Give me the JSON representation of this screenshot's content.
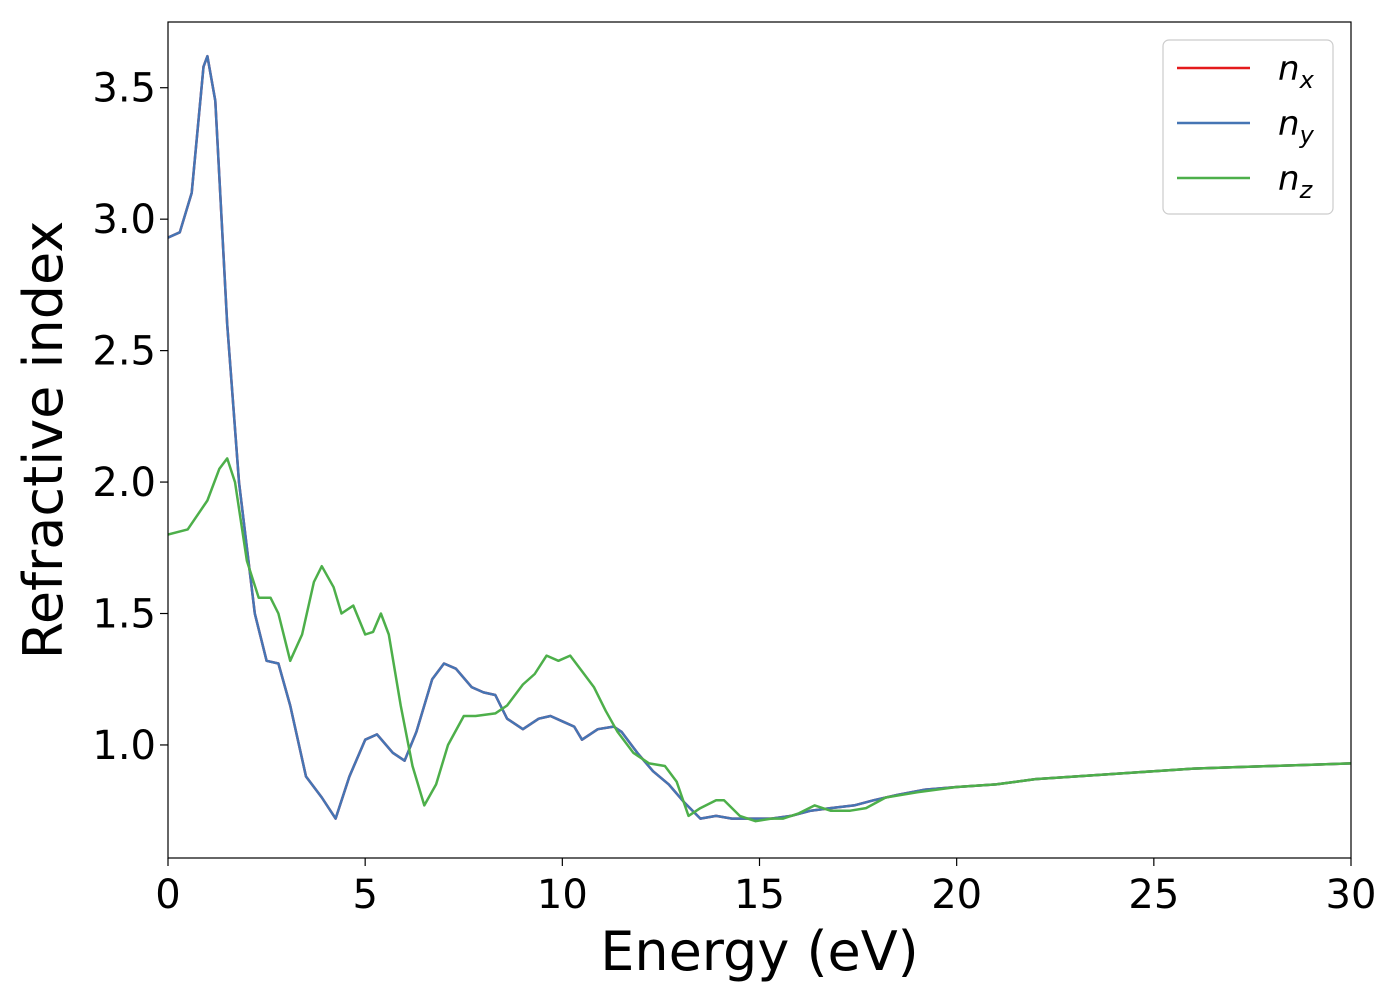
{
  "chart_data": {
    "type": "line",
    "title": "",
    "xlabel": "Energy (eV)",
    "ylabel": "Refractive index",
    "xlim": [
      0,
      30
    ],
    "ylim": [
      0.57,
      3.75
    ],
    "grid": false,
    "legend_position": "top-right",
    "x_ticks": [
      0,
      5,
      10,
      15,
      20,
      25,
      30
    ],
    "y_ticks": [
      1.0,
      1.5,
      2.0,
      2.5,
      3.0,
      3.5
    ],
    "x_tick_labels": [
      "0",
      "5",
      "10",
      "15",
      "20",
      "25",
      "30"
    ],
    "y_tick_labels": [
      "1.0",
      "1.5",
      "2.0",
      "2.5",
      "3.0",
      "3.5"
    ],
    "series": [
      {
        "name": "n",
        "subscript": "x",
        "color": "#e41a1c",
        "points": [
          [
            0,
            2.93
          ],
          [
            0.3,
            2.95
          ],
          [
            0.6,
            3.1
          ],
          [
            0.9,
            3.58
          ],
          [
            1.0,
            3.62
          ],
          [
            1.2,
            3.45
          ],
          [
            1.5,
            2.6
          ],
          [
            1.8,
            2.0
          ],
          [
            2.2,
            1.5
          ],
          [
            2.5,
            1.32
          ],
          [
            2.8,
            1.31
          ],
          [
            3.1,
            1.15
          ],
          [
            3.5,
            0.88
          ],
          [
            3.9,
            0.8
          ],
          [
            4.25,
            0.72
          ],
          [
            4.6,
            0.88
          ],
          [
            5.0,
            1.02
          ],
          [
            5.3,
            1.04
          ],
          [
            5.7,
            0.97
          ],
          [
            6.0,
            0.94
          ],
          [
            6.3,
            1.05
          ],
          [
            6.7,
            1.25
          ],
          [
            7.0,
            1.31
          ],
          [
            7.3,
            1.29
          ],
          [
            7.7,
            1.22
          ],
          [
            8.0,
            1.2
          ],
          [
            8.3,
            1.19
          ],
          [
            8.6,
            1.1
          ],
          [
            9.0,
            1.06
          ],
          [
            9.4,
            1.1
          ],
          [
            9.7,
            1.11
          ],
          [
            10.0,
            1.09
          ],
          [
            10.3,
            1.07
          ],
          [
            10.5,
            1.02
          ],
          [
            10.9,
            1.06
          ],
          [
            11.3,
            1.07
          ],
          [
            11.5,
            1.05
          ],
          [
            11.9,
            0.97
          ],
          [
            12.3,
            0.9
          ],
          [
            12.7,
            0.85
          ],
          [
            13.1,
            0.78
          ],
          [
            13.5,
            0.72
          ],
          [
            13.9,
            0.73
          ],
          [
            14.3,
            0.72
          ],
          [
            14.8,
            0.72
          ],
          [
            15.3,
            0.72
          ],
          [
            15.8,
            0.73
          ],
          [
            16.3,
            0.75
          ],
          [
            16.8,
            0.76
          ],
          [
            17.4,
            0.77
          ],
          [
            17.9,
            0.79
          ],
          [
            18.5,
            0.81
          ],
          [
            19.2,
            0.83
          ],
          [
            20.0,
            0.84
          ],
          [
            21.0,
            0.85
          ],
          [
            22.0,
            0.87
          ],
          [
            23.0,
            0.88
          ],
          [
            24.0,
            0.89
          ],
          [
            25.0,
            0.9
          ],
          [
            26.0,
            0.91
          ],
          [
            27.0,
            0.915
          ],
          [
            28.0,
            0.92
          ],
          [
            29.0,
            0.925
          ],
          [
            30.0,
            0.93
          ]
        ]
      },
      {
        "name": "n",
        "subscript": "y",
        "color": "#4575b4",
        "points": [
          [
            0,
            2.93
          ],
          [
            0.3,
            2.95
          ],
          [
            0.6,
            3.1
          ],
          [
            0.9,
            3.58
          ],
          [
            1.0,
            3.62
          ],
          [
            1.2,
            3.45
          ],
          [
            1.5,
            2.6
          ],
          [
            1.8,
            2.0
          ],
          [
            2.2,
            1.5
          ],
          [
            2.5,
            1.32
          ],
          [
            2.8,
            1.31
          ],
          [
            3.1,
            1.15
          ],
          [
            3.5,
            0.88
          ],
          [
            3.9,
            0.8
          ],
          [
            4.25,
            0.72
          ],
          [
            4.6,
            0.88
          ],
          [
            5.0,
            1.02
          ],
          [
            5.3,
            1.04
          ],
          [
            5.7,
            0.97
          ],
          [
            6.0,
            0.94
          ],
          [
            6.3,
            1.05
          ],
          [
            6.7,
            1.25
          ],
          [
            7.0,
            1.31
          ],
          [
            7.3,
            1.29
          ],
          [
            7.7,
            1.22
          ],
          [
            8.0,
            1.2
          ],
          [
            8.3,
            1.19
          ],
          [
            8.6,
            1.1
          ],
          [
            9.0,
            1.06
          ],
          [
            9.4,
            1.1
          ],
          [
            9.7,
            1.11
          ],
          [
            10.0,
            1.09
          ],
          [
            10.3,
            1.07
          ],
          [
            10.5,
            1.02
          ],
          [
            10.9,
            1.06
          ],
          [
            11.3,
            1.07
          ],
          [
            11.5,
            1.05
          ],
          [
            11.9,
            0.97
          ],
          [
            12.3,
            0.9
          ],
          [
            12.7,
            0.85
          ],
          [
            13.1,
            0.78
          ],
          [
            13.5,
            0.72
          ],
          [
            13.9,
            0.73
          ],
          [
            14.3,
            0.72
          ],
          [
            14.8,
            0.72
          ],
          [
            15.3,
            0.72
          ],
          [
            15.8,
            0.73
          ],
          [
            16.3,
            0.75
          ],
          [
            16.8,
            0.76
          ],
          [
            17.4,
            0.77
          ],
          [
            17.9,
            0.79
          ],
          [
            18.5,
            0.81
          ],
          [
            19.2,
            0.83
          ],
          [
            20.0,
            0.84
          ],
          [
            21.0,
            0.85
          ],
          [
            22.0,
            0.87
          ],
          [
            23.0,
            0.88
          ],
          [
            24.0,
            0.89
          ],
          [
            25.0,
            0.9
          ],
          [
            26.0,
            0.91
          ],
          [
            27.0,
            0.915
          ],
          [
            28.0,
            0.92
          ],
          [
            29.0,
            0.925
          ],
          [
            30.0,
            0.93
          ]
        ]
      },
      {
        "name": "n",
        "subscript": "z",
        "color": "#4daf4a",
        "points": [
          [
            0,
            1.8
          ],
          [
            0.5,
            1.82
          ],
          [
            1.0,
            1.93
          ],
          [
            1.3,
            2.05
          ],
          [
            1.5,
            2.09
          ],
          [
            1.7,
            2.0
          ],
          [
            2.0,
            1.7
          ],
          [
            2.3,
            1.56
          ],
          [
            2.6,
            1.56
          ],
          [
            2.8,
            1.5
          ],
          [
            3.1,
            1.32
          ],
          [
            3.4,
            1.42
          ],
          [
            3.7,
            1.62
          ],
          [
            3.9,
            1.68
          ],
          [
            4.2,
            1.6
          ],
          [
            4.4,
            1.5
          ],
          [
            4.7,
            1.53
          ],
          [
            5.0,
            1.42
          ],
          [
            5.2,
            1.43
          ],
          [
            5.4,
            1.5
          ],
          [
            5.6,
            1.42
          ],
          [
            5.9,
            1.15
          ],
          [
            6.2,
            0.92
          ],
          [
            6.5,
            0.77
          ],
          [
            6.8,
            0.85
          ],
          [
            7.1,
            1.0
          ],
          [
            7.5,
            1.11
          ],
          [
            7.8,
            1.11
          ],
          [
            8.3,
            1.12
          ],
          [
            8.6,
            1.15
          ],
          [
            9.0,
            1.23
          ],
          [
            9.3,
            1.27
          ],
          [
            9.6,
            1.34
          ],
          [
            9.9,
            1.32
          ],
          [
            10.2,
            1.34
          ],
          [
            10.5,
            1.28
          ],
          [
            10.8,
            1.22
          ],
          [
            11.1,
            1.13
          ],
          [
            11.4,
            1.05
          ],
          [
            11.8,
            0.97
          ],
          [
            12.2,
            0.93
          ],
          [
            12.6,
            0.92
          ],
          [
            12.9,
            0.86
          ],
          [
            13.2,
            0.73
          ],
          [
            13.5,
            0.76
          ],
          [
            13.9,
            0.79
          ],
          [
            14.1,
            0.79
          ],
          [
            14.5,
            0.73
          ],
          [
            14.9,
            0.71
          ],
          [
            15.3,
            0.72
          ],
          [
            15.6,
            0.72
          ],
          [
            16.0,
            0.74
          ],
          [
            16.4,
            0.77
          ],
          [
            16.8,
            0.75
          ],
          [
            17.3,
            0.75
          ],
          [
            17.7,
            0.76
          ],
          [
            18.2,
            0.8
          ],
          [
            19.0,
            0.82
          ],
          [
            20.0,
            0.84
          ],
          [
            21.0,
            0.85
          ],
          [
            22.0,
            0.87
          ],
          [
            23.0,
            0.88
          ],
          [
            24.0,
            0.89
          ],
          [
            25.0,
            0.9
          ],
          [
            26.0,
            0.91
          ],
          [
            27.0,
            0.915
          ],
          [
            28.0,
            0.92
          ],
          [
            29.0,
            0.925
          ],
          [
            30.0,
            0.93
          ]
        ]
      }
    ]
  }
}
